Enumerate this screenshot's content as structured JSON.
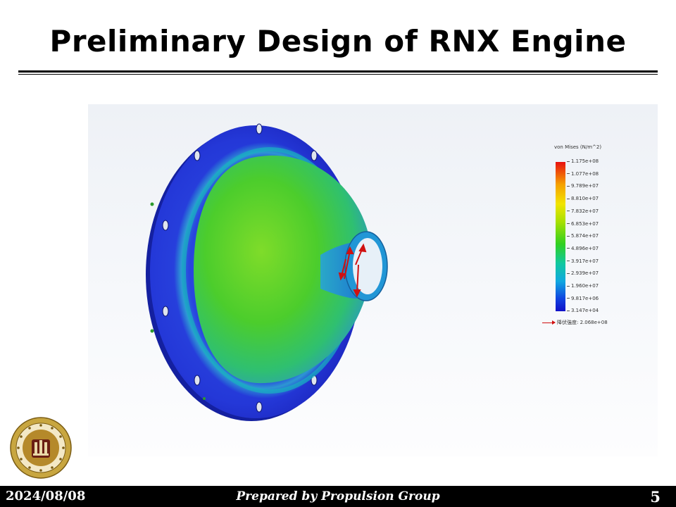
{
  "slide": {
    "title": "Preliminary Design of RNX Engine",
    "page_number": "5"
  },
  "footer": {
    "date": "2024/08/08",
    "credit": "Prepared by Propulsion Group"
  },
  "legend": {
    "title": "von Mises (N/m^2)",
    "ticks": [
      "1.175e+08",
      "1.077e+08",
      "9.789e+07",
      "8.810e+07",
      "7.832e+07",
      "6.853e+07",
      "5.874e+07",
      "4.896e+07",
      "3.917e+07",
      "2.939e+07",
      "1.960e+07",
      "9.817e+06",
      "3.147e+04"
    ],
    "yield_label": "降伏強度: 2.068e+08"
  },
  "colors": {
    "flange": "#2a3fe0",
    "dome": "#4ecb2a",
    "nozzle": "#1ca0cc",
    "arrow": "#d01010"
  }
}
